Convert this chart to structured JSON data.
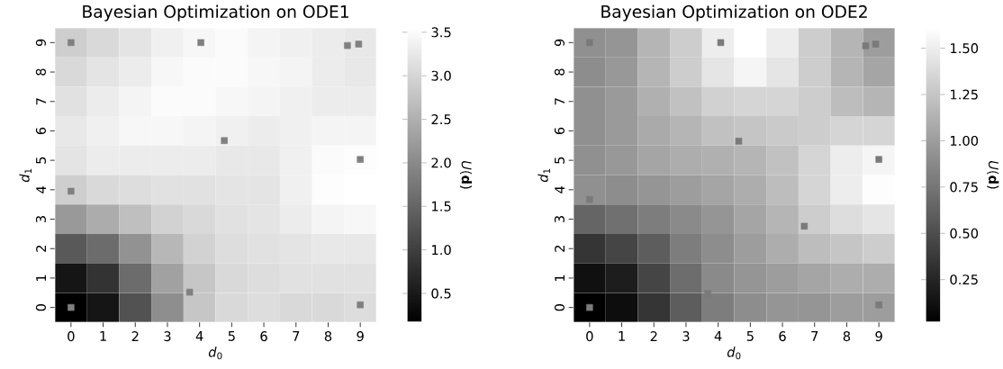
{
  "chart_data": [
    {
      "type": "heatmap",
      "tick_labels": false,
      "title": "Bayesian Optimization on ODE1",
      "xlabel": "*d*$_{0}$",
      "ylabel": "*d*$_{1}$",
      "clabel": "*U*(**d**)",
      "categories": [
        "0",
        "1",
        "2",
        "3",
        "4",
        "5",
        "6",
        "7",
        "8",
        "9"
      ],
      "y_categories": [
        "9",
        "8",
        "7",
        "6",
        "5",
        "4",
        "3",
        "2",
        "1",
        "0"
      ],
      "cells": [
        [
          2.9,
          3.05,
          3.2,
          3.35,
          3.45,
          3.5,
          3.4,
          3.35,
          3.3,
          3.25
        ],
        [
          3.05,
          3.2,
          3.3,
          3.45,
          3.5,
          3.5,
          3.45,
          3.4,
          3.3,
          3.25
        ],
        [
          3.15,
          3.3,
          3.4,
          3.5,
          3.5,
          3.45,
          3.4,
          3.35,
          3.3,
          3.3
        ],
        [
          3.25,
          3.35,
          3.45,
          3.45,
          3.4,
          3.35,
          3.3,
          3.35,
          3.4,
          3.4
        ],
        [
          3.2,
          3.3,
          3.3,
          3.3,
          3.3,
          3.25,
          3.25,
          3.35,
          3.5,
          3.52
        ],
        [
          2.9,
          3.05,
          3.1,
          3.15,
          3.15,
          3.2,
          3.2,
          3.35,
          3.52,
          3.55
        ],
        [
          2.2,
          2.45,
          2.7,
          2.95,
          3.05,
          3.15,
          3.2,
          3.3,
          3.4,
          3.45
        ],
        [
          1.35,
          1.6,
          2.1,
          2.6,
          2.95,
          3.1,
          3.15,
          3.2,
          3.25,
          3.25
        ],
        [
          0.45,
          0.85,
          1.6,
          2.3,
          2.8,
          3.05,
          3.1,
          3.15,
          3.15,
          3.15
        ],
        [
          0.17,
          0.45,
          1.25,
          2.05,
          2.8,
          3.05,
          3.1,
          3.05,
          3.05,
          3.1
        ]
      ],
      "clim": [
        0.17,
        3.55
      ],
      "cticks": [
        0.5,
        {
          "value": 1.0,
          "label": "1.0"
        },
        1.5,
        {
          "value": 2.0,
          "label": "2.0"
        },
        2.5,
        {
          "value": 3.0,
          "label": "3.0"
        },
        3.5
      ]
    },
    {
      "type": "scatter",
      "xlim": [
        -0.5,
        9.5
      ],
      "ylim": [
        -0.5,
        9.5
      ],
      "xticks": [
        0,
        1,
        2,
        3,
        4,
        5,
        6,
        7,
        8,
        9
      ],
      "yticks": [
        0,
        1,
        2,
        3,
        4,
        5,
        6,
        7,
        8,
        9
      ],
      "marker": "square",
      "series": [
        {
          "color": "#808080",
          "x": [
            0,
            4.04,
            8.6,
            8.95,
            4.77,
            0,
            9.0,
            3.69,
            0,
            9.0
          ],
          "values": [
            9,
            9,
            8.9,
            8.95,
            5.67,
            3.95,
            5.03,
            0.52,
            0,
            0.09
          ]
        }
      ]
    },
    {
      "type": "heatmap",
      "tick_labels": false,
      "title": "Bayesian Optimization on ODE2",
      "xlabel": "*d*$_{0}$",
      "ylabel": "*d*$_{1}$",
      "clabel": "*U*(**d**)",
      "categories": [
        "0",
        "1",
        "2",
        "3",
        "4",
        "5",
        "6",
        "7",
        "8",
        "9"
      ],
      "y_categories": [
        "9",
        "8",
        "7",
        "6",
        "5",
        "4",
        "3",
        "2",
        "1",
        "0"
      ],
      "cells": [
        [
          0.92,
          0.95,
          1.15,
          1.3,
          1.5,
          1.61,
          1.5,
          1.3,
          1.15,
          1.0
        ],
        [
          0.9,
          0.97,
          1.15,
          1.3,
          1.45,
          1.55,
          1.45,
          1.3,
          1.15,
          1.05
        ],
        [
          0.92,
          0.98,
          1.12,
          1.22,
          1.32,
          1.35,
          1.35,
          1.3,
          1.2,
          1.15
        ],
        [
          0.92,
          0.98,
          1.08,
          1.15,
          1.22,
          1.25,
          1.28,
          1.3,
          1.35,
          1.35
        ],
        [
          0.92,
          0.97,
          1.05,
          1.1,
          1.12,
          1.15,
          1.22,
          1.35,
          1.5,
          1.55
        ],
        [
          0.92,
          0.9,
          0.95,
          1.0,
          1.05,
          1.1,
          1.2,
          1.35,
          1.5,
          1.6
        ],
        [
          0.65,
          0.72,
          0.8,
          0.88,
          0.95,
          1.05,
          1.15,
          1.3,
          1.4,
          1.45
        ],
        [
          0.35,
          0.45,
          0.6,
          0.8,
          0.9,
          1.0,
          1.1,
          1.2,
          1.25,
          1.3
        ],
        [
          0.12,
          0.2,
          0.45,
          0.7,
          0.88,
          0.95,
          1.0,
          1.05,
          1.1,
          1.1
        ],
        [
          0.02,
          0.1,
          0.35,
          0.6,
          0.8,
          0.9,
          0.95,
          0.95,
          1.0,
          1.0
        ]
      ],
      "clim": [
        0.02,
        1.61
      ],
      "cticks": [
        {
          "value": 0.25,
          "label": "0.25"
        },
        {
          "value": 0.5,
          "label": "0.50"
        },
        {
          "value": 0.75,
          "label": "0.75"
        },
        {
          "value": 1.0,
          "label": "1.00"
        },
        {
          "value": 1.25,
          "label": "1.25"
        },
        {
          "value": 1.5,
          "label": "1.50"
        }
      ]
    },
    {
      "type": "scatter",
      "xlim": [
        -0.5,
        9.5
      ],
      "ylim": [
        -0.5,
        9.5
      ],
      "xticks": [
        0,
        1,
        2,
        3,
        4,
        5,
        6,
        7,
        8,
        9
      ],
      "yticks": [
        0,
        1,
        2,
        3,
        4,
        5,
        6,
        7,
        8,
        9
      ],
      "marker": "square",
      "series": [
        {
          "color": "#7a7a7a",
          "x": [
            0,
            4.08,
            8.59,
            8.9,
            4.64,
            0,
            9.0,
            6.68,
            3.68,
            0,
            9.0
          ],
          "values": [
            9,
            9,
            8.89,
            8.95,
            5.65,
            3.67,
            5.03,
            2.76,
            0.47,
            0,
            0.09
          ]
        }
      ]
    }
  ]
}
